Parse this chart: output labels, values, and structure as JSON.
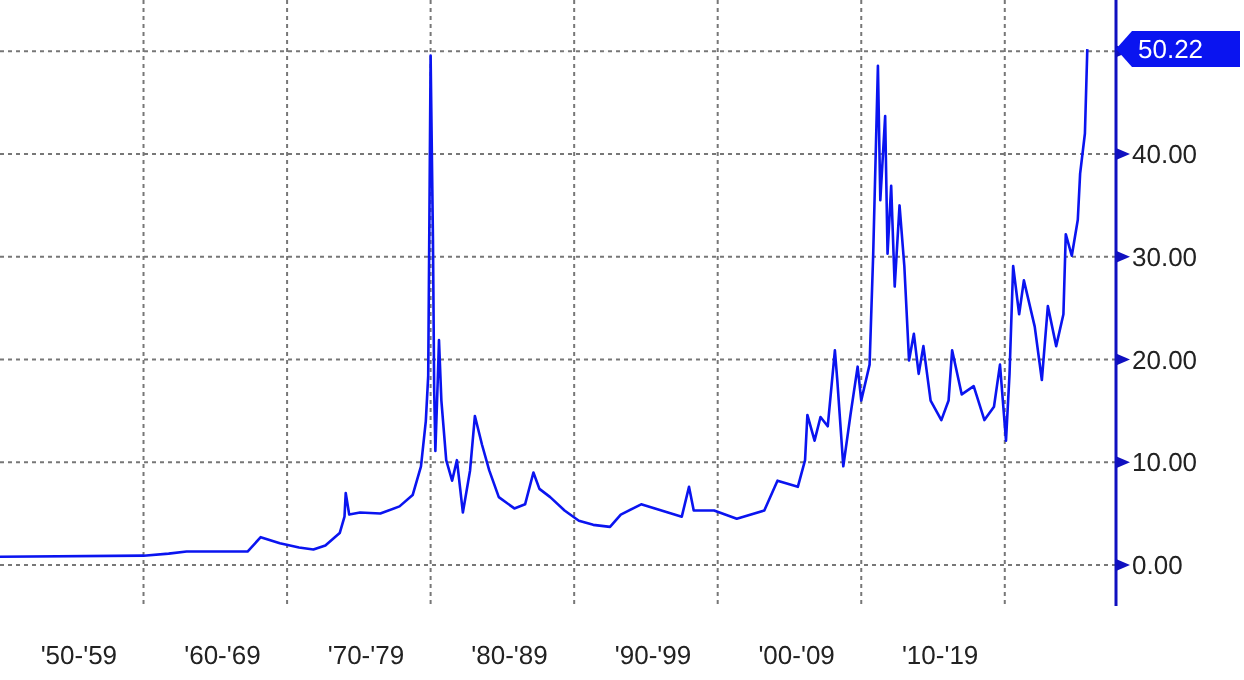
{
  "chart_data": {
    "type": "line",
    "xlim": [
      "1950-01",
      "2027-10"
    ],
    "ylim": [
      -4,
      55
    ],
    "xticks": [
      {
        "value": "1955-07",
        "label": "'50-'59"
      },
      {
        "value": "1960-01",
        "label": null
      },
      {
        "value": "1965-07",
        "label": "'60-'69"
      },
      {
        "value": "1970-01",
        "label": null
      },
      {
        "value": "1975-07",
        "label": "'70-'79"
      },
      {
        "value": "1980-01",
        "label": null
      },
      {
        "value": "1985-07",
        "label": "'80-'89"
      },
      {
        "value": "1990-01",
        "label": null
      },
      {
        "value": "1995-07",
        "label": "'90-'99"
      },
      {
        "value": "2000-01",
        "label": null
      },
      {
        "value": "2005-07",
        "label": "'00-'09"
      },
      {
        "value": "2010-01",
        "label": null
      },
      {
        "value": "2015-07",
        "label": "'10-'19"
      },
      {
        "value": "2020-01",
        "label": null
      }
    ],
    "yticks": [
      {
        "value": 0,
        "label": "0.00"
      },
      {
        "value": 10,
        "label": "10.00"
      },
      {
        "value": 20,
        "label": "20.00"
      },
      {
        "value": 30,
        "label": "30.00"
      },
      {
        "value": 40,
        "label": "40.00"
      },
      {
        "value": 50,
        "label": null
      }
    ],
    "grid": true,
    "annotations": [
      "50.22"
    ],
    "series": [
      {
        "color": "#0a14f0",
        "x": [
          "1950-01",
          "1960-01",
          "1961-10",
          "1963-01",
          "1967-04",
          "1968-03",
          "1969-07",
          "1970-11",
          "1971-11",
          "1972-09",
          "1973-09",
          "1974-01",
          "1974-02",
          "1974-05",
          "1975-02",
          "1976-07",
          "1977-11",
          "1978-10",
          "1979-05",
          "1979-09",
          "1979-11",
          "1980-01",
          "1980-03",
          "1980-04",
          "1980-05",
          "1980-07",
          "1980-08",
          "1980-10",
          "1981-02",
          "1981-07",
          "1981-11",
          "1982-04",
          "1982-10",
          "1983-02",
          "1983-08",
          "1984-02",
          "1984-10",
          "1985-11",
          "1986-08",
          "1987-03",
          "1987-08",
          "1988-05",
          "1989-05",
          "1990-05",
          "1991-05",
          "1992-07",
          "1993-04",
          "1994-09",
          "1996-02",
          "1997-07",
          "1998-01",
          "1998-05",
          "1999-10",
          "2001-05",
          "2003-04",
          "2004-03",
          "2005-08",
          "2006-02",
          "2006-04",
          "2006-10",
          "2007-03",
          "2007-09",
          "2008-03",
          "2008-05",
          "2008-10",
          "2009-04",
          "2009-10",
          "2010-01",
          "2010-08",
          "2010-11",
          "2011-03",
          "2011-05",
          "2011-09",
          "2011-11",
          "2012-02",
          "2012-05",
          "2012-09",
          "2013-01",
          "2013-05",
          "2013-09",
          "2014-01",
          "2014-05",
          "2014-11",
          "2015-08",
          "2016-02",
          "2016-05",
          "2017-01",
          "2017-11",
          "2018-08",
          "2019-04",
          "2019-09",
          "2020-02",
          "2020-05",
          "2020-08",
          "2021-01",
          "2021-05",
          "2022-02",
          "2022-08",
          "2023-01",
          "2023-08",
          "2024-02",
          "2024-04",
          "2024-09",
          "2025-02",
          "2025-04",
          "2025-08",
          "2025-10"
        ],
        "values": [
          0.8,
          0.9,
          1.1,
          1.3,
          1.3,
          2.7,
          2.1,
          1.7,
          1.5,
          1.9,
          3.1,
          4.7,
          7,
          4.9,
          5.1,
          5,
          5.7,
          6.8,
          9.6,
          14,
          18.4,
          49.6,
          31.6,
          17,
          11.1,
          18,
          21.9,
          16,
          10.2,
          8.2,
          10.2,
          5.1,
          9.2,
          14.5,
          11.7,
          9.2,
          6.6,
          5.5,
          5.9,
          9,
          7.4,
          6.6,
          5.3,
          4.3,
          3.9,
          3.7,
          4.9,
          5.9,
          5.3,
          4.7,
          7.6,
          5.3,
          5.3,
          4.5,
          5.3,
          8.2,
          7.6,
          10.2,
          14.6,
          12.1,
          14.4,
          13.5,
          20.9,
          18,
          9.6,
          14.6,
          19.3,
          16,
          19.5,
          30.3,
          48.6,
          35.5,
          43.7,
          30.3,
          36.9,
          27.1,
          35,
          29.1,
          19.9,
          22.5,
          18.6,
          21.3,
          16,
          14.1,
          16,
          20.9,
          16.6,
          17.4,
          14.1,
          15.4,
          19.5,
          12.1,
          18.6,
          29.1,
          24.4,
          27.7,
          23.2,
          18,
          25.2,
          21.3,
          24.4,
          32.2,
          30.1,
          33.6,
          38.1,
          42,
          50.22
        ]
      }
    ]
  }
}
